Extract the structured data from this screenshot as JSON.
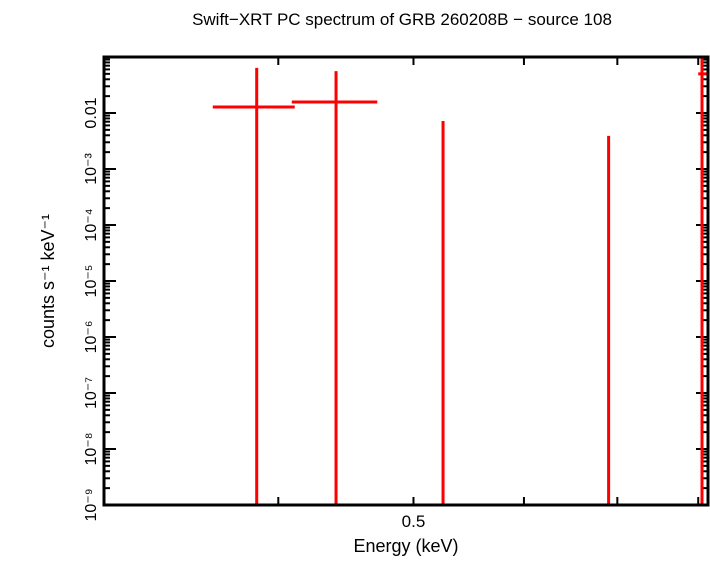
{
  "chart_data": {
    "type": "scatter",
    "title": "Swift−XRT PC spectrum of GRB 260208B − source 108",
    "xlabel": "Energy (keV)",
    "ylabel": "counts s⁻¹ keV⁻¹",
    "xscale": "log",
    "yscale": "log",
    "xlim": [
      0.3,
      0.813
    ],
    "ylim": [
      1e-09,
      0.1
    ],
    "x_ticks_major": [
      0.4,
      0.5,
      0.6,
      0.7,
      0.8
    ],
    "x_tick_labels": [
      {
        "value": 0.5,
        "label": "0.5"
      }
    ],
    "y_tick_labels": [
      {
        "value": 0.01,
        "label": "0.01"
      },
      {
        "value": 0.001,
        "label": "10⁻³"
      },
      {
        "value": 0.0001,
        "label": "10⁻⁴"
      },
      {
        "value": 1e-05,
        "label": "10⁻⁵"
      },
      {
        "value": 1e-06,
        "label": "10⁻⁶"
      },
      {
        "value": 1e-07,
        "label": "10⁻⁷"
      },
      {
        "value": 1e-08,
        "label": "10⁻⁸"
      },
      {
        "value": 1e-09,
        "label": "10⁻⁹"
      }
    ],
    "grid": false,
    "series": [
      {
        "color": "#ff0000",
        "points": [
          {
            "x": 0.386,
            "xlo": 0.359,
            "xhi": 0.411,
            "y": 0.0128,
            "yhi": 0.064,
            "ylo": null
          },
          {
            "x": 0.44,
            "xlo": 0.409,
            "xhi": 0.471,
            "y": 0.0157,
            "yhi": 0.056,
            "ylo": null
          },
          {
            "x": 0.525,
            "xlo": null,
            "xhi": null,
            "y": null,
            "yhi": 0.0072,
            "ylo": null
          },
          {
            "x": 0.69,
            "xlo": null,
            "xhi": null,
            "y": null,
            "yhi": 0.0039,
            "ylo": null
          },
          {
            "x": 0.805,
            "xlo": 0.8,
            "xhi": 0.813,
            "y": 0.05,
            "yhi": 0.1,
            "ylo": null
          }
        ]
      }
    ]
  }
}
